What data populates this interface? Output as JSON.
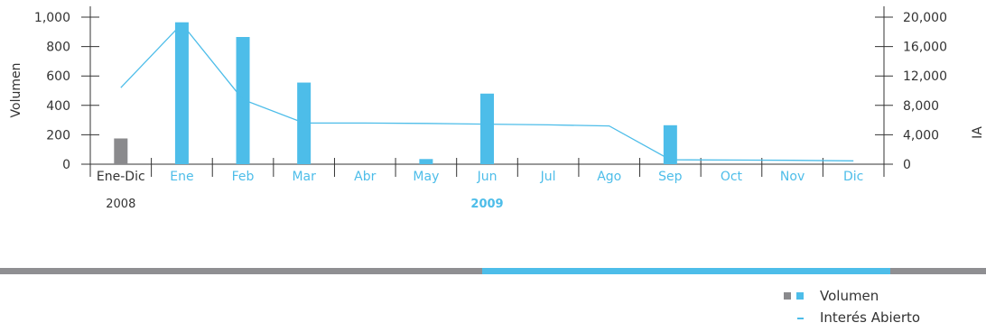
{
  "chart_data": {
    "type": "bar+line",
    "categories": [
      "Ene-Dic",
      "Ene",
      "Feb",
      "Mar",
      "Abr",
      "May",
      "Jun",
      "Jul",
      "Ago",
      "Sep",
      "Oct",
      "Nov",
      "Dic"
    ],
    "year_labels": {
      "first": "2008",
      "second": "2009"
    },
    "series": [
      {
        "name": "Volumen",
        "axis": "left",
        "values": [
          175,
          965,
          865,
          555,
          0,
          35,
          480,
          0,
          0,
          265,
          0,
          0,
          0
        ]
      },
      {
        "name": "Interés Abierto",
        "axis": "right",
        "values": [
          10400,
          19100,
          8800,
          5600,
          5600,
          5550,
          5450,
          5350,
          5200,
          600,
          560,
          530,
          450
        ]
      }
    ],
    "ylabel_left": "Volumen",
    "ylabel_right": "IA",
    "yticks_left": [
      "0",
      "200",
      "400",
      "600",
      "800",
      "1,000"
    ],
    "yticks_right": [
      "0",
      "4,000",
      "8,000",
      "12,000",
      "16,000",
      "20,000"
    ],
    "ylim_left": [
      0,
      1000
    ],
    "ylim_right": [
      0,
      20000
    ],
    "legend_position": "bottom-right",
    "grid": false,
    "colors": {
      "bar_2008": "#8a8a8d",
      "bar_2009": "#4dbde9",
      "line": "#4dbde9",
      "axis": "#333333"
    }
  },
  "legend": {
    "volumen_label": "Volumen",
    "ia_label": "Interés Abierto"
  }
}
